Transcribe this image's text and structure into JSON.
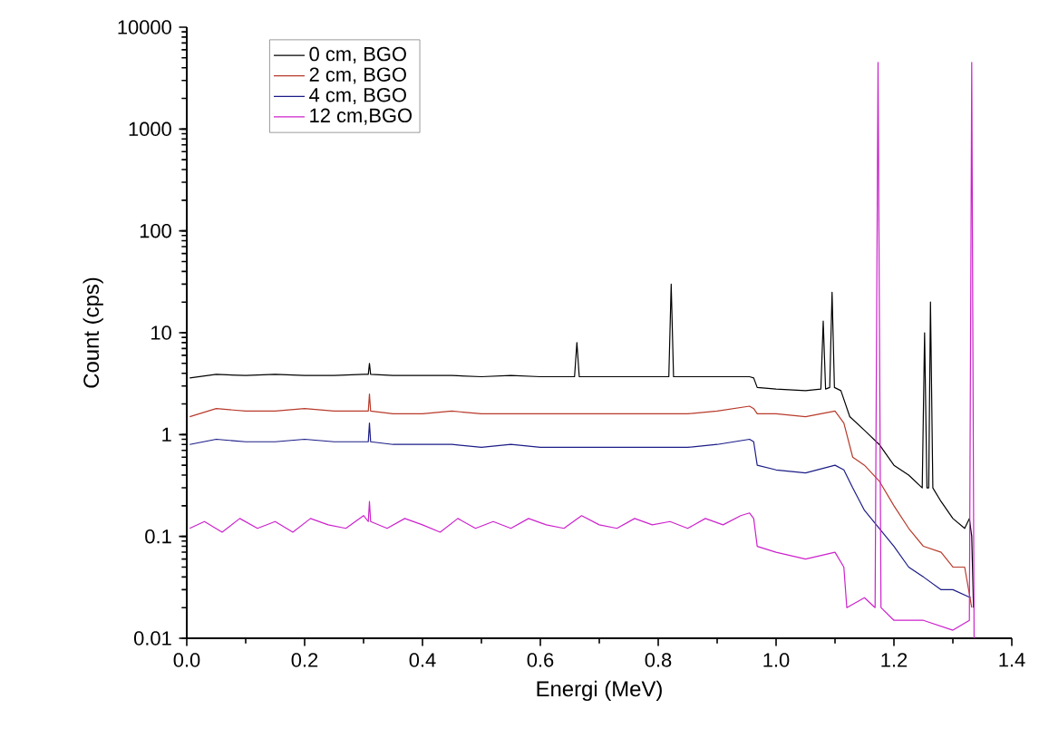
{
  "chart_data": {
    "type": "line",
    "xlabel": "Energi (MeV)",
    "ylabel": "Count (cps)",
    "log": "y",
    "grid": false,
    "legend": "top left",
    "marker": "none",
    "line_style": "solid",
    "xlim": [
      0.0,
      1.4
    ],
    "ylim": [
      0.01,
      10000
    ],
    "xticks": [
      {
        "value": 0,
        "label": "0.0"
      },
      {
        "value": 0.2,
        "label": "0.2"
      },
      {
        "value": 0.4,
        "label": "0.4"
      },
      {
        "value": 0.6,
        "label": "0.6"
      },
      {
        "value": 0.8,
        "label": "0.8"
      },
      {
        "value": 1.0,
        "label": "1.0"
      },
      {
        "value": 1.2,
        "label": "1.2"
      },
      {
        "value": 1.4,
        "label": "1.4"
      }
    ],
    "yticks": [
      0.01,
      0.1,
      1,
      10,
      100,
      1000,
      10000
    ],
    "series": [
      {
        "name": "0 cm, BGO",
        "color": "#000000",
        "x": [
          0.005,
          0.05,
          0.1,
          0.15,
          0.2,
          0.25,
          0.3,
          0.308,
          0.31,
          0.312,
          0.35,
          0.4,
          0.45,
          0.5,
          0.55,
          0.6,
          0.658,
          0.662,
          0.666,
          0.7,
          0.75,
          0.818,
          0.822,
          0.826,
          0.85,
          0.9,
          0.955,
          0.962,
          0.968,
          1.0,
          1.05,
          1.076,
          1.08,
          1.084,
          1.091,
          1.095,
          1.099,
          1.11,
          1.125,
          1.15,
          1.175,
          1.2,
          1.225,
          1.248,
          1.252,
          1.256,
          1.259,
          1.262,
          1.266,
          1.28,
          1.3,
          1.32,
          1.328,
          1.332,
          1.335
        ],
        "values": [
          3.6,
          3.9,
          3.8,
          3.9,
          3.8,
          3.8,
          3.9,
          3.9,
          5,
          3.9,
          3.8,
          3.8,
          3.8,
          3.7,
          3.8,
          3.7,
          3.7,
          8,
          3.7,
          3.7,
          3.7,
          3.7,
          30,
          3.7,
          3.7,
          3.7,
          3.7,
          3.6,
          2.9,
          2.8,
          2.7,
          2.8,
          13,
          2.8,
          2.9,
          25,
          2.9,
          2.7,
          1.5,
          1.1,
          0.8,
          0.5,
          0.4,
          0.3,
          10,
          0.3,
          0.3,
          20,
          0.3,
          0.22,
          0.15,
          0.12,
          0.15,
          0.1,
          0.02
        ]
      },
      {
        "name": "2 cm, BGO",
        "color": "#b83a2a",
        "x": [
          0.005,
          0.05,
          0.1,
          0.15,
          0.2,
          0.25,
          0.3,
          0.308,
          0.31,
          0.312,
          0.35,
          0.4,
          0.45,
          0.5,
          0.55,
          0.6,
          0.65,
          0.7,
          0.75,
          0.8,
          0.85,
          0.9,
          0.955,
          0.962,
          0.968,
          1.0,
          1.05,
          1.1,
          1.115,
          1.13,
          1.15,
          1.175,
          1.2,
          1.225,
          1.25,
          1.28,
          1.3,
          1.32,
          1.332
        ],
        "values": [
          1.5,
          1.8,
          1.7,
          1.7,
          1.8,
          1.7,
          1.7,
          1.7,
          2.5,
          1.7,
          1.6,
          1.6,
          1.7,
          1.6,
          1.6,
          1.6,
          1.6,
          1.6,
          1.6,
          1.6,
          1.6,
          1.7,
          1.9,
          1.8,
          1.6,
          1.6,
          1.5,
          1.7,
          1.3,
          0.6,
          0.5,
          0.35,
          0.2,
          0.12,
          0.08,
          0.07,
          0.05,
          0.05,
          0.02
        ]
      },
      {
        "name": "4 cm, BGO",
        "color": "#1c1c88",
        "x": [
          0.005,
          0.05,
          0.1,
          0.15,
          0.2,
          0.25,
          0.3,
          0.308,
          0.31,
          0.312,
          0.35,
          0.4,
          0.45,
          0.5,
          0.55,
          0.6,
          0.65,
          0.7,
          0.75,
          0.8,
          0.85,
          0.9,
          0.955,
          0.962,
          0.968,
          1.0,
          1.05,
          1.1,
          1.115,
          1.13,
          1.15,
          1.175,
          1.2,
          1.225,
          1.25,
          1.28,
          1.3,
          1.33
        ],
        "values": [
          0.8,
          0.9,
          0.85,
          0.85,
          0.9,
          0.85,
          0.85,
          0.85,
          1.3,
          0.85,
          0.8,
          0.8,
          0.8,
          0.75,
          0.8,
          0.75,
          0.75,
          0.75,
          0.75,
          0.75,
          0.75,
          0.8,
          0.9,
          0.85,
          0.5,
          0.45,
          0.42,
          0.5,
          0.45,
          0.3,
          0.18,
          0.12,
          0.08,
          0.05,
          0.04,
          0.03,
          0.03,
          0.025
        ]
      },
      {
        "name": "12 cm,BGO",
        "color": "#cc22cc",
        "x": [
          0.005,
          0.03,
          0.06,
          0.09,
          0.12,
          0.15,
          0.18,
          0.21,
          0.24,
          0.27,
          0.3,
          0.308,
          0.31,
          0.312,
          0.34,
          0.37,
          0.4,
          0.43,
          0.46,
          0.49,
          0.52,
          0.55,
          0.58,
          0.61,
          0.64,
          0.67,
          0.7,
          0.73,
          0.76,
          0.79,
          0.82,
          0.85,
          0.88,
          0.91,
          0.94,
          0.955,
          0.962,
          0.968,
          1.0,
          1.05,
          1.1,
          1.115,
          1.12,
          1.15,
          1.168,
          1.173,
          1.178,
          1.2,
          1.25,
          1.3,
          1.328,
          1.332,
          1.336
        ],
        "values": [
          0.12,
          0.14,
          0.11,
          0.15,
          0.12,
          0.14,
          0.11,
          0.15,
          0.13,
          0.12,
          0.16,
          0.14,
          0.22,
          0.14,
          0.12,
          0.15,
          0.13,
          0.11,
          0.15,
          0.12,
          0.14,
          0.12,
          0.15,
          0.13,
          0.12,
          0.16,
          0.13,
          0.12,
          0.15,
          0.13,
          0.14,
          0.12,
          0.15,
          0.13,
          0.16,
          0.17,
          0.15,
          0.08,
          0.07,
          0.06,
          0.07,
          0.05,
          0.02,
          0.025,
          0.02,
          4500,
          0.02,
          0.015,
          0.015,
          0.012,
          0.015,
          4500,
          0.01
        ]
      }
    ]
  }
}
